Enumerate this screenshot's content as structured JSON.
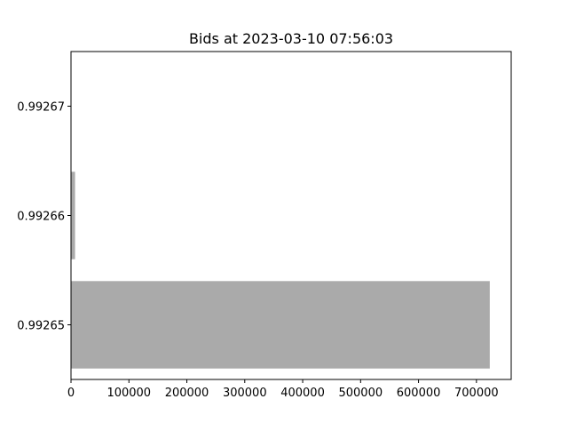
{
  "chart_data": {
    "type": "bar",
    "orientation": "horizontal",
    "title": "Bids at 2023-03-10 07:56:03",
    "xlabel": "",
    "ylabel": "",
    "categories": [
      "0.99265",
      "0.99266",
      "0.99267"
    ],
    "values": [
      723000,
      7000,
      0
    ],
    "xlim": [
      0,
      760000
    ],
    "xticks": [
      0,
      100000,
      200000,
      300000,
      400000,
      500000,
      600000,
      700000
    ],
    "xtick_labels": [
      "0",
      "100000",
      "200000",
      "300000",
      "400000",
      "500000",
      "600000",
      "700000"
    ],
    "grid": false,
    "legend": "none",
    "bar_color": "#aaaaaa"
  }
}
